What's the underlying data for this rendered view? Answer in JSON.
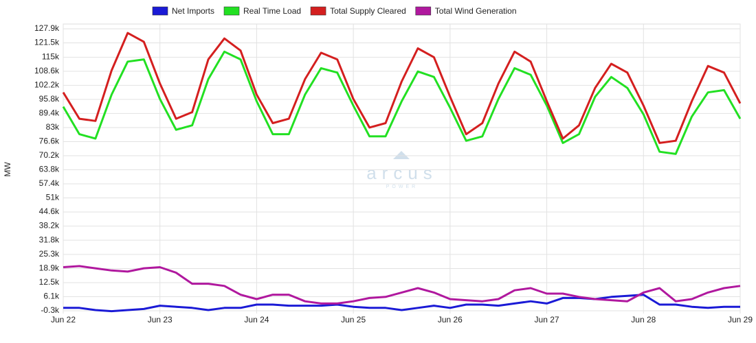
{
  "chart_data": {
    "type": "line",
    "y_label": "MW",
    "watermark": "arcus",
    "watermark_sub": "POWER",
    "categories": [
      "Jun 22",
      null,
      null,
      null,
      null,
      null,
      "Jun 23",
      null,
      null,
      null,
      null,
      null,
      "Jun 24",
      null,
      null,
      null,
      null,
      null,
      "Jun 25",
      null,
      null,
      null,
      null,
      null,
      "Jun 26",
      null,
      null,
      null,
      null,
      null,
      "Jun 27",
      null,
      null,
      null,
      null,
      null,
      "Jun 28",
      null,
      null,
      null,
      null,
      null,
      "Jun 29"
    ],
    "series": [
      {
        "name": "Net Imports",
        "color": "#1a1ad6",
        "values": [
          1000,
          1000,
          0,
          -500,
          0,
          500,
          2000,
          1500,
          1000,
          0,
          1000,
          1000,
          2500,
          2500,
          2000,
          2000,
          2000,
          2500,
          1500,
          1000,
          1000,
          0,
          1000,
          2000,
          1000,
          2500,
          2500,
          2000,
          3000,
          4000,
          3000,
          5500,
          5500,
          5000,
          6000,
          6500,
          7000,
          2500,
          2500,
          1500,
          1000,
          1500,
          1500
        ]
      },
      {
        "name": "Real Time Load",
        "color": "#22e022",
        "values": [
          92500,
          80000,
          78000,
          98000,
          113000,
          114000,
          96000,
          82000,
          84000,
          105000,
          117500,
          114000,
          95000,
          80000,
          80000,
          98000,
          110000,
          108000,
          93000,
          79000,
          79000,
          95000,
          108500,
          106000,
          92000,
          77000,
          79000,
          96000,
          110000,
          107000,
          93000,
          76000,
          80000,
          97000,
          106000,
          101000,
          89000,
          72000,
          71000,
          88000,
          99000,
          100000,
          87000
        ]
      },
      {
        "name": "Total Supply Cleared",
        "color": "#d41f1f",
        "values": [
          99000,
          87000,
          86000,
          109000,
          126000,
          122000,
          103000,
          87000,
          90000,
          114000,
          123500,
          118000,
          98000,
          85000,
          87000,
          105000,
          117000,
          114000,
          96000,
          83000,
          85000,
          104000,
          119000,
          115000,
          97000,
          80000,
          85000,
          103000,
          117500,
          113000,
          95000,
          78000,
          84000,
          101000,
          112000,
          108000,
          93000,
          76000,
          77000,
          95000,
          111000,
          108000,
          94000
        ]
      },
      {
        "name": "Total Wind Generation",
        "color": "#b0189e",
        "values": [
          19500,
          20000,
          19000,
          18000,
          17500,
          19000,
          19500,
          17000,
          12000,
          12000,
          11000,
          7000,
          5000,
          7000,
          7000,
          4000,
          3000,
          3000,
          4000,
          5500,
          6000,
          8000,
          10000,
          8000,
          5000,
          4500,
          4000,
          5000,
          9000,
          10000,
          7500,
          7500,
          6000,
          5000,
          4500,
          4000,
          8000,
          10000,
          4000,
          5000,
          8000,
          10000,
          11000
        ]
      }
    ],
    "ylim": [
      -300,
      127900
    ],
    "yticks": [
      {
        "value": -300,
        "label": "-0.3k"
      },
      {
        "value": 6100,
        "label": "6.1k"
      },
      {
        "value": 12500,
        "label": "12.5k"
      },
      {
        "value": 18900,
        "label": "18.9k"
      },
      {
        "value": 25300,
        "label": "25.3k"
      },
      {
        "value": 31800,
        "label": "31.8k"
      },
      {
        "value": 38200,
        "label": "38.2k"
      },
      {
        "value": 44600,
        "label": "44.6k"
      },
      {
        "value": 51000,
        "label": "51k"
      },
      {
        "value": 57400,
        "label": "57.4k"
      },
      {
        "value": 63800,
        "label": "63.8k"
      },
      {
        "value": 70200,
        "label": "70.2k"
      },
      {
        "value": 76600,
        "label": "76.6k"
      },
      {
        "value": 83000,
        "label": "83k"
      },
      {
        "value": 89400,
        "label": "89.4k"
      },
      {
        "value": 95800,
        "label": "95.8k"
      },
      {
        "value": 102200,
        "label": "102.2k"
      },
      {
        "value": 108600,
        "label": "108.6k"
      },
      {
        "value": 115000,
        "label": "115k"
      },
      {
        "value": 121500,
        "label": "121.5k"
      },
      {
        "value": 127900,
        "label": "127.9k"
      }
    ],
    "grid": true,
    "legend": "top"
  }
}
